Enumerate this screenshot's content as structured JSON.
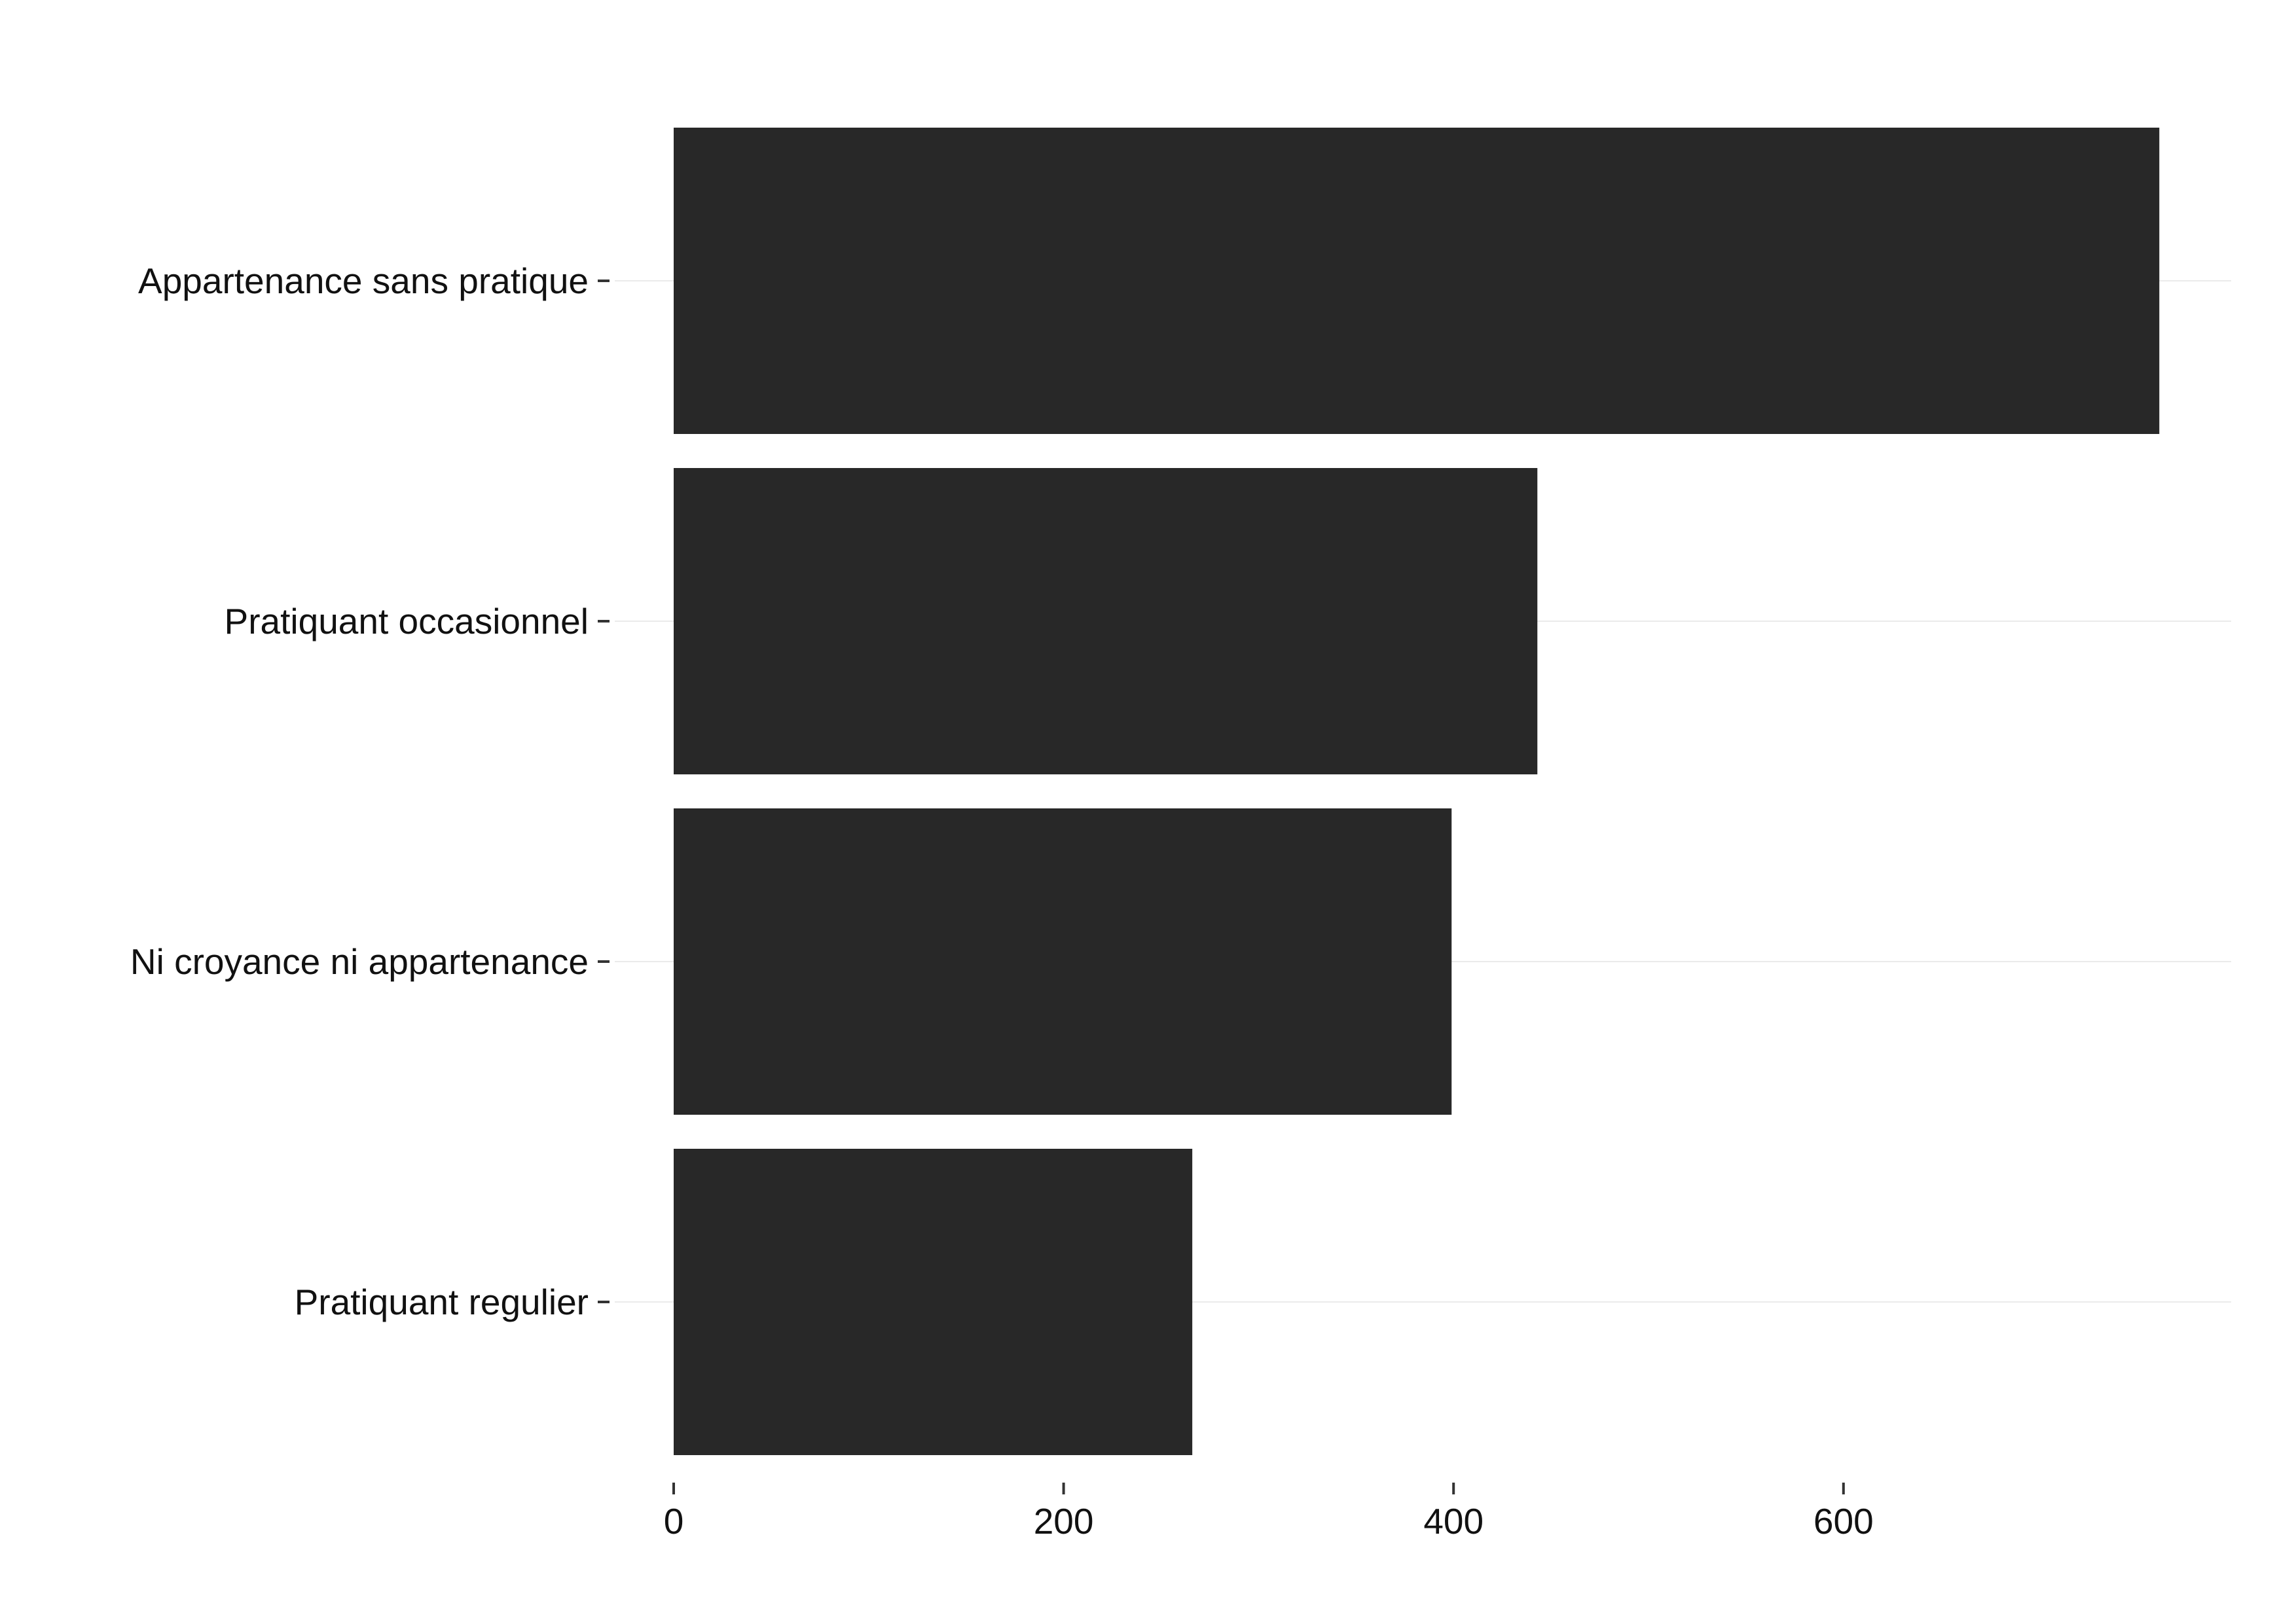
{
  "chart_data": {
    "type": "bar",
    "orientation": "horizontal",
    "categories": [
      "Appartenance sans pratique",
      "Pratiquant occasionnel",
      "Ni croyance ni appartenance",
      "Pratiquant regulier"
    ],
    "values": [
      762,
      443,
      399,
      266
    ],
    "xlim": [
      0,
      800
    ],
    "x_ticks": [
      0,
      200,
      400,
      600
    ],
    "x_tick_labels": [
      "0",
      "200",
      "400",
      "600"
    ],
    "title": "",
    "xlabel": "",
    "ylabel": "",
    "grid": "horizontal major lines at categories",
    "legend": "none",
    "bar_color": "#282828",
    "grid_color": "#ebebeb",
    "tick_color": "#333333",
    "text_color": "#111111"
  }
}
